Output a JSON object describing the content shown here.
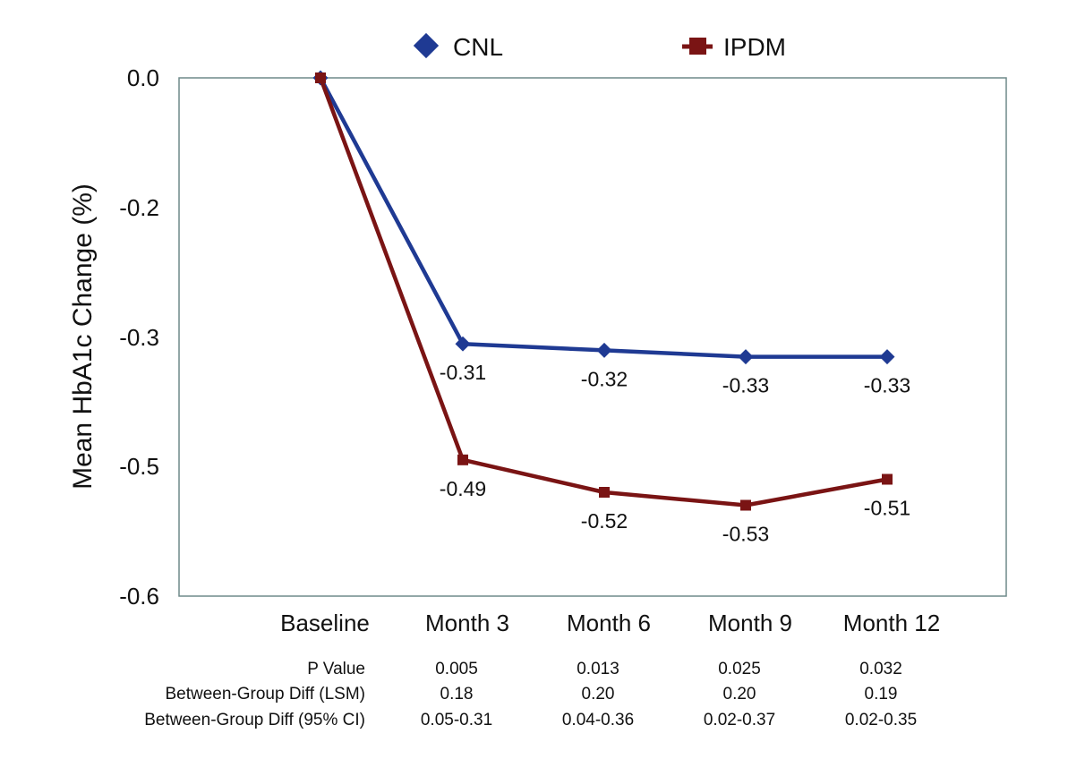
{
  "chart_data": {
    "type": "line",
    "title": "",
    "xlabel": "",
    "ylabel": "Mean HbA1c Change (%)",
    "categories": [
      "Baseline",
      "Month 3",
      "Month 6",
      "Month 9",
      "Month 12"
    ],
    "y_ticks": [
      "0.0",
      "-0.2",
      "-0.3",
      "-0.5",
      "-0.6"
    ],
    "y_tick_values": [
      0.0,
      -0.2,
      -0.3,
      -0.5,
      -0.6
    ],
    "ylim": [
      -0.6,
      0.0
    ],
    "grid": false,
    "legend": "top",
    "series": [
      {
        "name": "CNL",
        "color": "#1f3a93",
        "marker": "diamond",
        "values": [
          0.0,
          -0.31,
          -0.32,
          -0.33,
          -0.33
        ],
        "labels": [
          "",
          "-0.31",
          "-0.32",
          "-0.33",
          "-0.33"
        ]
      },
      {
        "name": "IPDM",
        "color": "#7a1414",
        "marker": "square",
        "values": [
          0.0,
          -0.49,
          -0.52,
          -0.53,
          -0.51
        ],
        "labels": [
          "",
          "-0.49",
          "-0.52",
          "-0.53",
          "-0.51"
        ]
      }
    ],
    "table": [
      {
        "label": "P Value",
        "values": [
          "0.005",
          "0.013",
          "0.025",
          "0.032"
        ]
      },
      {
        "label": "Between-Group Diff (LSM)",
        "values": [
          "0.18",
          "0.20",
          "0.20",
          "0.19"
        ]
      },
      {
        "label": "Between-Group Diff (95% CI)",
        "values": [
          "0.05-0.31",
          "0.04-0.36",
          "0.02-0.37",
          "0.02-0.35"
        ]
      }
    ]
  }
}
